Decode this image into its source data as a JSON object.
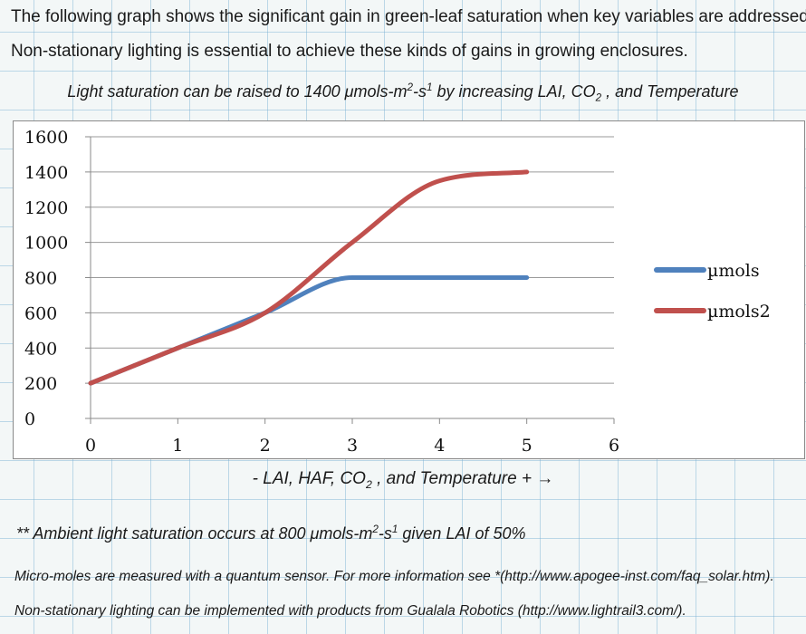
{
  "intro": {
    "line1": "The following graph shows the significant gain in green-leaf saturation when key variables are addressed.",
    "line2": "Non-stationary lighting is essential to achieve these kinds of gains in growing enclosures."
  },
  "subtitle": {
    "part1": "Light saturation can be raised to 1400 μmols-m",
    "sup1": "2",
    "part2": "-s",
    "sup2": "1",
    "part3": " by increasing LAI, CO",
    "sub1": "2",
    "part4": " , and Temperature"
  },
  "xaxis_caption": {
    "part1": "- LAI, HAF, CO",
    "sub1": "2",
    "part2": " , and Temperature + →"
  },
  "note": {
    "part1": "** Ambient light saturation occurs at 800 μmols-m",
    "sup1": "2",
    "part2": "-s",
    "sup2": "1",
    "part3": " given LAI of 50%"
  },
  "footer": {
    "line1": "Micro-moles are measured with a quantum sensor. For more information see *(http://www.apogee-inst.com/faq_solar.htm).",
    "line2": "Non-stationary lighting can be implemented with products from Gualala Robotics (http://www.lightrail3.com/)."
  },
  "chart_data": {
    "type": "line",
    "smooth": true,
    "x": [
      0,
      1,
      2,
      3,
      4,
      5
    ],
    "series": [
      {
        "name": "µmols",
        "color": "#4f81bd",
        "values": [
          200,
          400,
          600,
          800,
          800,
          800
        ]
      },
      {
        "name": "µmols2",
        "color": "#c0504d",
        "values": [
          200,
          400,
          600,
          1000,
          1350,
          1400
        ]
      }
    ],
    "xlim": [
      0,
      6
    ],
    "ylim": [
      0,
      1600
    ],
    "xticks": [
      0,
      1,
      2,
      3,
      4,
      5,
      6
    ],
    "yticks": [
      0,
      200,
      400,
      600,
      800,
      1000,
      1200,
      1400,
      1600
    ],
    "grid": "horizontal",
    "legend": "right"
  }
}
